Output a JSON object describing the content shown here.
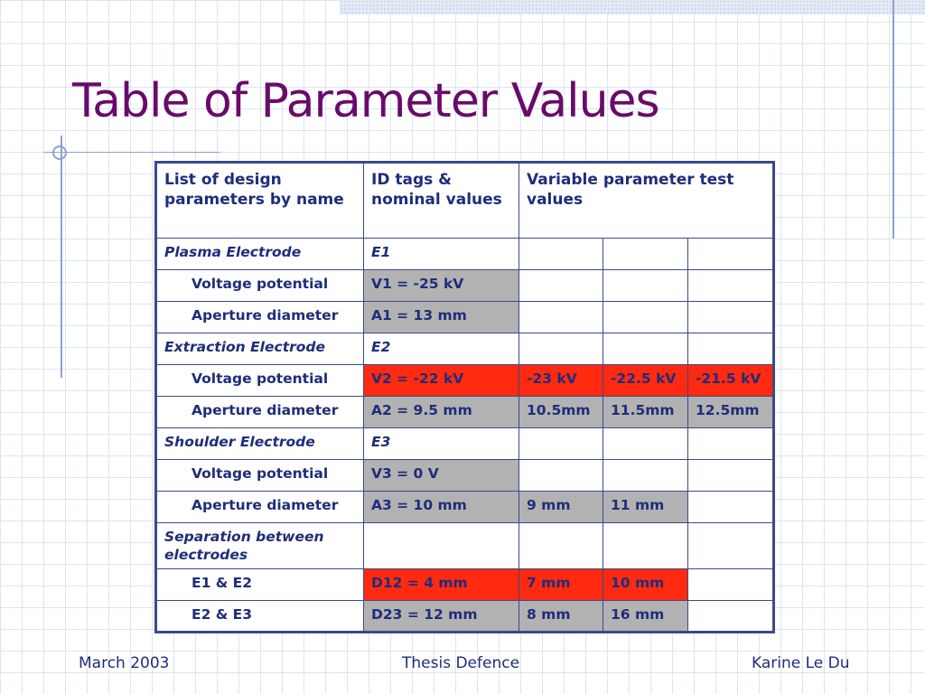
{
  "title": "Table of Parameter Values",
  "table": {
    "headers": [
      "List of design parameters by name",
      "ID tags & nominal values",
      "Variable parameter test values"
    ],
    "rows": [
      {
        "kind": "section",
        "cells": [
          "Plasma Electrode",
          "E1",
          "",
          "",
          ""
        ]
      },
      {
        "kind": "sub",
        "cells": [
          "Voltage potential",
          "V1 = -25 kV",
          "",
          "",
          ""
        ],
        "fills": [
          "",
          "gray",
          "",
          "",
          ""
        ]
      },
      {
        "kind": "sub",
        "cells": [
          "Aperture diameter",
          "A1 = 13 mm",
          "",
          "",
          ""
        ],
        "fills": [
          "",
          "gray",
          "",
          "",
          ""
        ]
      },
      {
        "kind": "section",
        "cells": [
          "Extraction Electrode",
          "E2",
          "",
          "",
          ""
        ]
      },
      {
        "kind": "sub",
        "cells": [
          "Voltage potential",
          "V2 = -22 kV",
          "-23 kV",
          "-22.5 kV",
          "-21.5 kV"
        ],
        "fills": [
          "",
          "red",
          "red",
          "red",
          "red"
        ]
      },
      {
        "kind": "sub",
        "cells": [
          "Aperture diameter",
          "A2 = 9.5 mm",
          "10.5mm",
          "11.5mm",
          "12.5mm"
        ],
        "fills": [
          "",
          "gray",
          "gray",
          "gray",
          "gray"
        ]
      },
      {
        "kind": "section",
        "cells": [
          "Shoulder Electrode",
          "E3",
          "",
          "",
          ""
        ]
      },
      {
        "kind": "sub",
        "cells": [
          "Voltage potential",
          "V3 = 0 V",
          "",
          "",
          ""
        ],
        "fills": [
          "",
          "gray",
          "",
          "",
          ""
        ]
      },
      {
        "kind": "sub",
        "cells": [
          "Aperture diameter",
          "A3 = 10 mm",
          "9 mm",
          "11 mm",
          ""
        ],
        "fills": [
          "",
          "gray",
          "gray",
          "gray",
          ""
        ]
      },
      {
        "kind": "section",
        "cells": [
          "Separation between electrodes",
          "",
          "",
          "",
          ""
        ]
      },
      {
        "kind": "sub",
        "cells": [
          "E1 & E2",
          "D12 = 4 mm",
          "7 mm",
          "10 mm",
          ""
        ],
        "fills": [
          "",
          "red",
          "red",
          "red",
          ""
        ]
      },
      {
        "kind": "sub",
        "cells": [
          "E2 & E3",
          "D23 = 12 mm",
          "8 mm",
          "16 mm",
          ""
        ],
        "fills": [
          "",
          "gray",
          "gray",
          "gray",
          ""
        ]
      }
    ]
  },
  "colors": {
    "title": "#6a0a6a",
    "text": "#1f2d7a",
    "gray_fill": "#b2b2b2",
    "red_fill": "#ff2a10"
  },
  "footer": {
    "left": "March 2003",
    "center": "Thesis Defence",
    "right": "Karine Le Du"
  }
}
